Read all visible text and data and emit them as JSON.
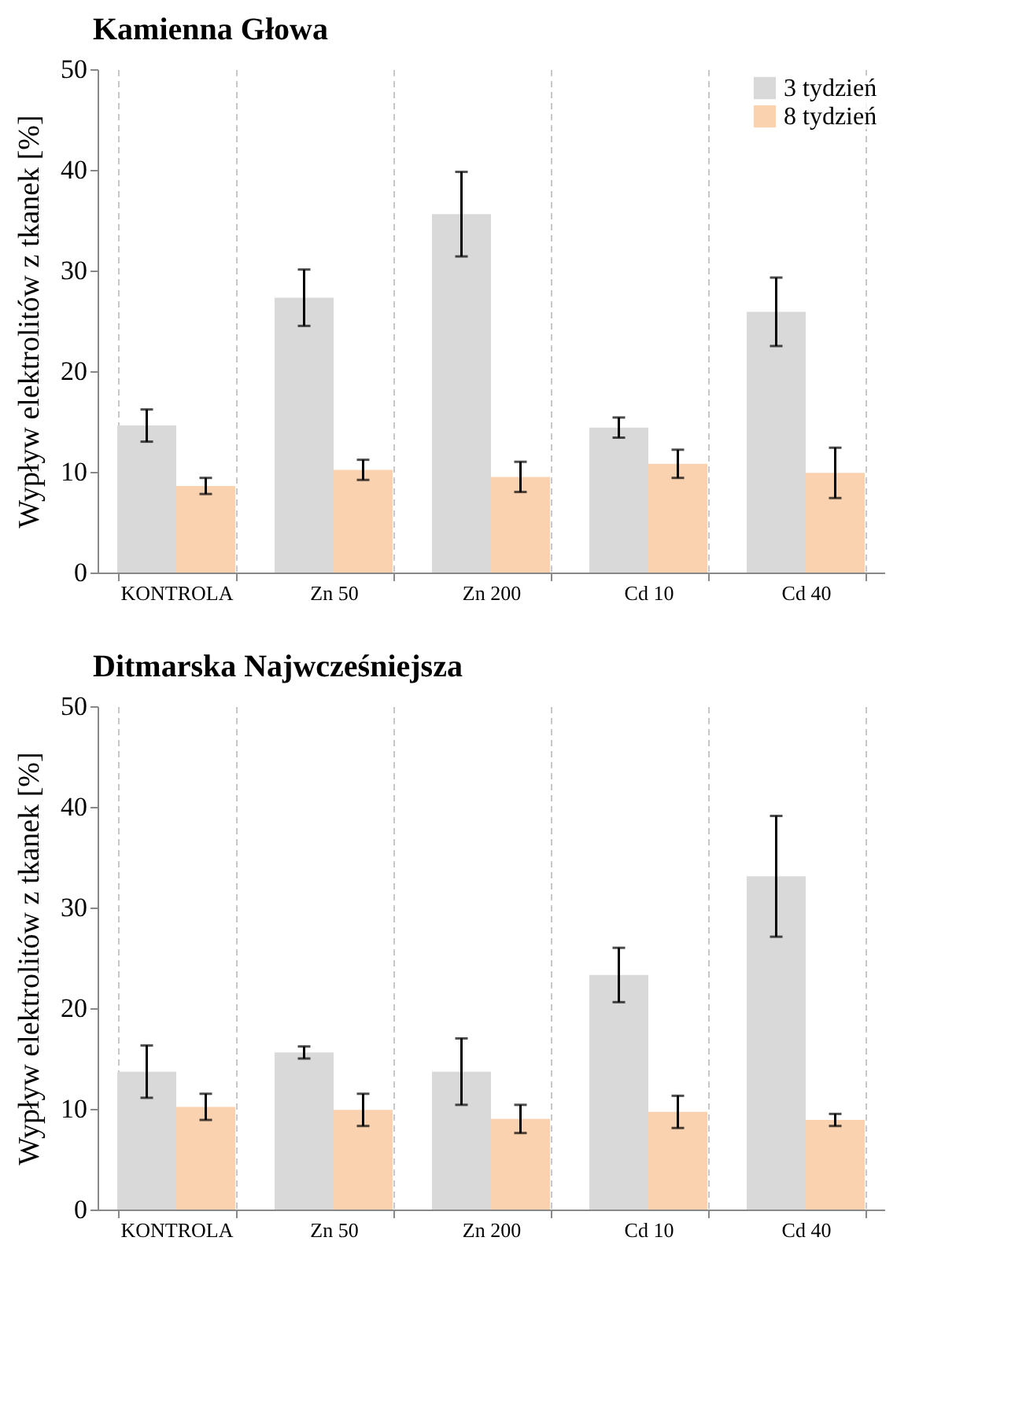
{
  "chart_data": [
    {
      "type": "bar",
      "title": "Kamienna Głowa",
      "ylabel": "Wypływ elektrolitów z tkanek [%]",
      "categories": [
        "KONTROLA",
        "Zn 50",
        "Zn 200",
        "Cd 10",
        "Cd 40"
      ],
      "ylim": [
        0,
        50
      ],
      "yticks": [
        0,
        10,
        20,
        30,
        40,
        50
      ],
      "grid": "x",
      "legend": "top right",
      "series": [
        {
          "name": "3 tydzień",
          "color": "#d9d9d9",
          "values": [
            14.6,
            27.3,
            35.6,
            14.4,
            25.9
          ],
          "errors": [
            1.6,
            2.8,
            4.2,
            1.0,
            3.4
          ]
        },
        {
          "name": "8 tydzień",
          "color": "#fbd2b0",
          "values": [
            8.6,
            10.2,
            9.5,
            10.8,
            9.9
          ],
          "errors": [
            0.8,
            1.0,
            1.5,
            1.4,
            2.5
          ]
        }
      ]
    },
    {
      "type": "bar",
      "title": "Ditmarska Najwcześniejsza",
      "ylabel": "Wypływ elektrolitów z tkanek [%]",
      "categories": [
        "KONTROLA",
        "Zn 50",
        "Zn 200",
        "Cd 10",
        "Cd 40"
      ],
      "ylim": [
        0,
        50
      ],
      "yticks": [
        0,
        10,
        20,
        30,
        40,
        50
      ],
      "grid": "x",
      "legend": "top right",
      "series": [
        {
          "name": "3 tydzień",
          "color": "#d9d9d9",
          "values": [
            13.7,
            15.6,
            13.7,
            23.3,
            33.1
          ],
          "errors": [
            2.6,
            0.6,
            3.3,
            2.7,
            6.0
          ]
        },
        {
          "name": "8 tydzień",
          "color": "#fbd2b0",
          "values": [
            10.2,
            9.9,
            9.0,
            9.7,
            8.9
          ],
          "errors": [
            1.3,
            1.6,
            1.4,
            1.6,
            0.6
          ]
        }
      ]
    }
  ]
}
